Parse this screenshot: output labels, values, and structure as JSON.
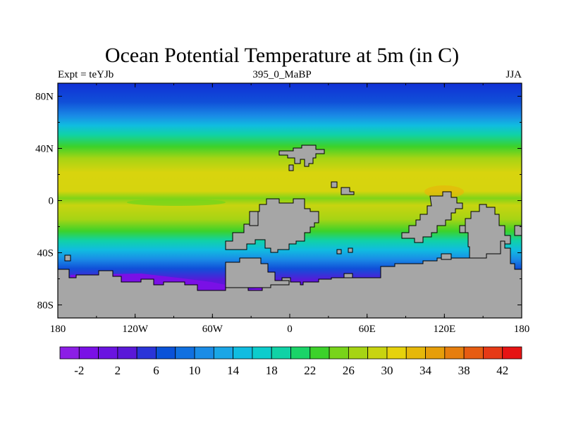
{
  "title": "Ocean Potential Temperature at 5m (in C)",
  "subtitle_left": "Expt = teYJb",
  "subtitle_center": "395_0_MaBP",
  "subtitle_right": "JJA",
  "lat_ticks": [
    "80N",
    "40N",
    "0",
    "40S",
    "80S"
  ],
  "lat_values": [
    80,
    40,
    0,
    -40,
    -80
  ],
  "lon_ticks": [
    "180",
    "120W",
    "60W",
    "0",
    "60E",
    "120E",
    "180"
  ],
  "lon_values": [
    -180,
    -120,
    -60,
    0,
    60,
    120,
    180
  ],
  "colorbar": {
    "labels": [
      "-2",
      "2",
      "6",
      "10",
      "14",
      "18",
      "22",
      "26",
      "30",
      "34",
      "38",
      "42"
    ],
    "colors": [
      "#8c1ee6",
      "#7a10e6",
      "#6a14e0",
      "#5a18d8",
      "#2a34d8",
      "#0a52d8",
      "#1070e0",
      "#1a8ce6",
      "#1aa6e6",
      "#10bce0",
      "#0ccccc",
      "#10d2a6",
      "#1ad468",
      "#3cd22a",
      "#78d41a",
      "#a6d414",
      "#c8d410",
      "#e6d20c",
      "#e6b80a",
      "#e69e0a",
      "#e67e0e",
      "#e65c12",
      "#e63a16",
      "#e61414"
    ]
  },
  "land_color": "#a6a6a6"
}
